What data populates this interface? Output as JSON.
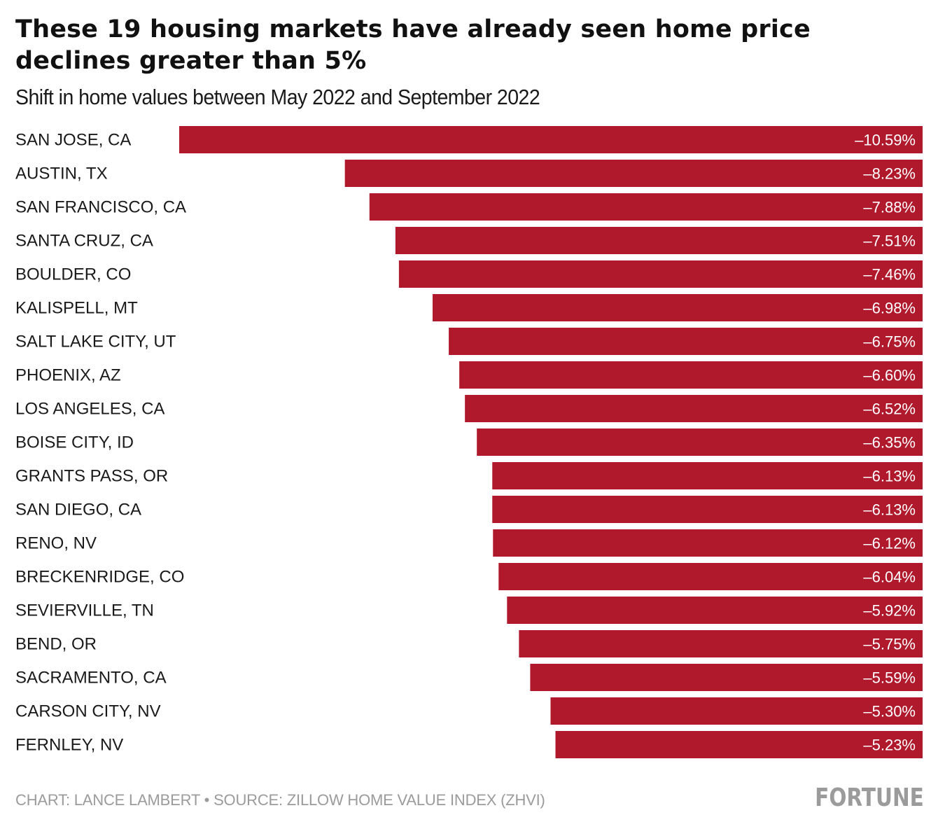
{
  "chart_data": {
    "type": "bar",
    "orientation": "horizontal",
    "title": "These 19 housing markets have already seen home price declines greater than 5%",
    "subtitle": "Shift in home values between May 2022 and September 2022",
    "categories": [
      "SAN JOSE, CA",
      "AUSTIN, TX",
      "SAN FRANCISCO, CA",
      "SANTA CRUZ, CA",
      "BOULDER, CO",
      "KALISPELL, MT",
      "SALT LAKE CITY, UT",
      "PHOENIX, AZ",
      "LOS ANGELES, CA",
      "BOISE CITY, ID",
      "GRANTS PASS, OR",
      "SAN DIEGO, CA",
      "RENO, NV",
      "BRECKENRIDGE, CO",
      "SEVIERVILLE, TN",
      "BEND, OR",
      "SACRAMENTO, CA",
      "CARSON CITY, NV",
      "FERNLEY, NV"
    ],
    "values": [
      -10.59,
      -8.23,
      -7.88,
      -7.51,
      -7.46,
      -6.98,
      -6.75,
      -6.6,
      -6.52,
      -6.35,
      -6.13,
      -6.13,
      -6.12,
      -6.04,
      -5.92,
      -5.75,
      -5.59,
      -5.3,
      -5.23
    ],
    "value_labels": [
      "–10.59%",
      "–8.23%",
      "–7.88%",
      "–7.51%",
      "–7.46%",
      "–6.98%",
      "–6.75%",
      "–6.60%",
      "–6.52%",
      "–6.35%",
      "–6.13%",
      "–6.13%",
      "–6.12%",
      "–6.04%",
      "–5.92%",
      "–5.75%",
      "–5.59%",
      "–5.30%",
      "–5.23%"
    ],
    "xlim": [
      -10.59,
      0
    ],
    "grid": false,
    "legend": "none",
    "bar_color": "#b0182c"
  },
  "footer": {
    "credit": "CHART: LANCE LAMBERT • SOURCE: ZILLOW HOME VALUE INDEX (ZHVI)",
    "brand": "FORTUNE"
  }
}
